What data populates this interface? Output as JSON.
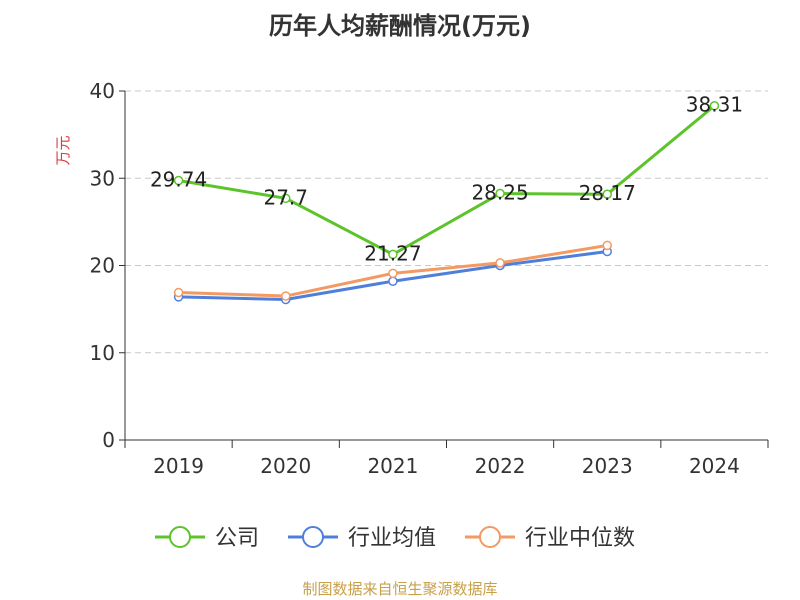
{
  "title": "历年人均薪酬情况(万元)",
  "source": "制图数据来自恒生聚源数据库",
  "chart_data": {
    "type": "line",
    "title": "历年人均薪酬情况(万元)",
    "ylabel": "万元",
    "ylim": [
      0,
      40
    ],
    "yticks": [
      0,
      10,
      20,
      30,
      40
    ],
    "categories": [
      "2019",
      "2020",
      "2021",
      "2022",
      "2023",
      "2024"
    ],
    "grid": true,
    "legend_position": "bottom",
    "series": [
      {
        "name": "公司",
        "color": "#5cc42a",
        "values": [
          29.74,
          27.7,
          21.27,
          28.25,
          28.17,
          38.31
        ],
        "labels": true
      },
      {
        "name": "行业均值",
        "color": "#4f7fdc",
        "values": [
          16.4,
          16.1,
          18.2,
          20.0,
          21.6,
          null
        ],
        "labels": false
      },
      {
        "name": "行业中位数",
        "color": "#f29a62",
        "values": [
          16.9,
          16.5,
          19.1,
          20.3,
          22.3,
          null
        ],
        "labels": false
      }
    ]
  }
}
